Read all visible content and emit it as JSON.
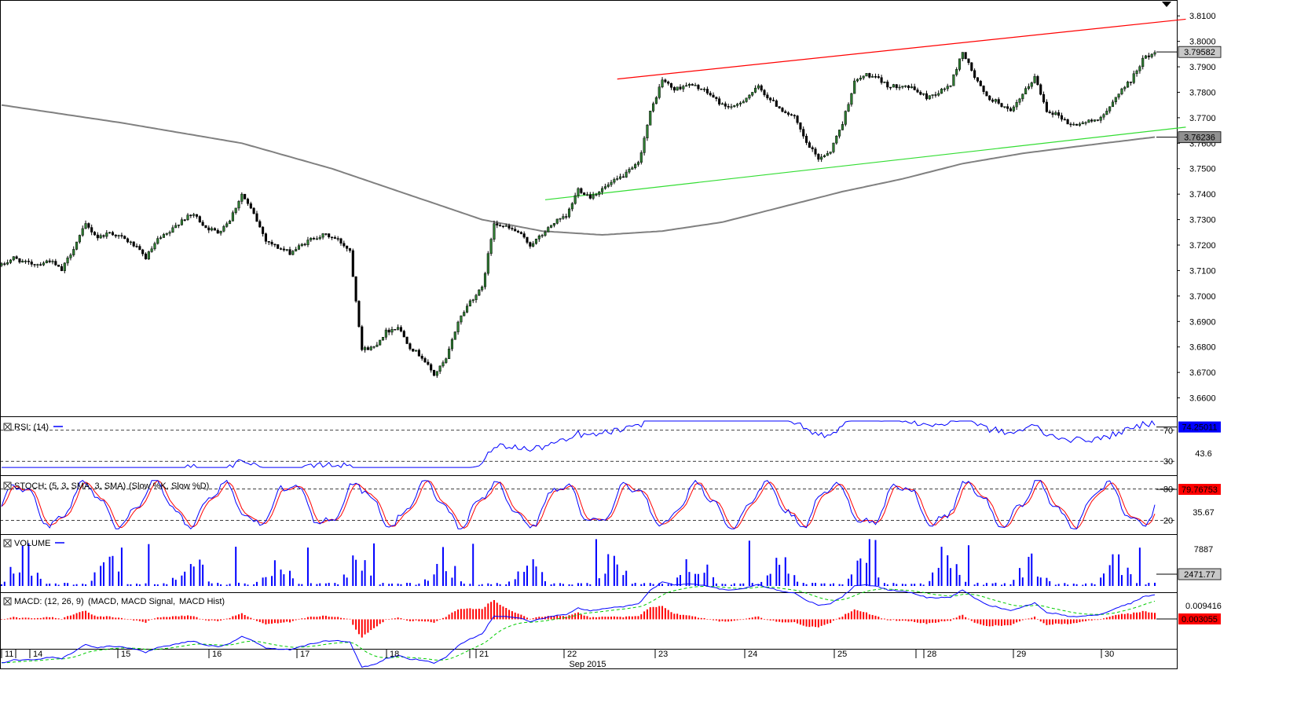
{
  "chart_data": {
    "type": "candlestick",
    "instrument_scale": {
      "price_ticks": [
        "3.8100",
        "3.8000",
        "3.7900",
        "3.7800",
        "3.7700",
        "3.7600",
        "3.7500",
        "3.7400",
        "3.7300",
        "3.7200",
        "3.7100",
        "3.7000",
        "3.6900",
        "3.6800",
        "3.6700",
        "3.6600"
      ],
      "ylim": [
        3.654,
        3.815
      ],
      "last_price_label": "3.79582",
      "ma_value_label": "3.76236"
    },
    "x_axis": {
      "labels": [
        "11",
        "14",
        "15",
        "16",
        "17",
        "18",
        "21",
        "22",
        "23",
        "24",
        "25",
        "28",
        "29",
        "30"
      ],
      "month_label": "Sep 2015"
    },
    "price_path": [
      [
        0,
        3.712
      ],
      [
        4,
        3.715
      ],
      [
        8,
        3.713
      ],
      [
        12,
        3.7125
      ],
      [
        16,
        3.714
      ],
      [
        20,
        3.71
      ],
      [
        24,
        3.719
      ],
      [
        28,
        3.728
      ],
      [
        32,
        3.723
      ],
      [
        36,
        3.725
      ],
      [
        40,
        3.723
      ],
      [
        44,
        3.72
      ],
      [
        48,
        3.715
      ],
      [
        52,
        3.722
      ],
      [
        56,
        3.725
      ],
      [
        60,
        3.73
      ],
      [
        64,
        3.732
      ],
      [
        68,
        3.727
      ],
      [
        72,
        3.725
      ],
      [
        76,
        3.73
      ],
      [
        80,
        3.74
      ],
      [
        84,
        3.732
      ],
      [
        88,
        3.722
      ],
      [
        92,
        3.719
      ],
      [
        96,
        3.717
      ],
      [
        100,
        3.72
      ],
      [
        104,
        3.723
      ],
      [
        108,
        3.724
      ],
      [
        112,
        3.722
      ],
      [
        116,
        3.718
      ],
      [
        120,
        3.679
      ],
      [
        124,
        3.68
      ],
      [
        128,
        3.686
      ],
      [
        132,
        3.688
      ],
      [
        136,
        3.68
      ],
      [
        140,
        3.676
      ],
      [
        144,
        3.669
      ],
      [
        148,
        3.675
      ],
      [
        152,
        3.69
      ],
      [
        156,
        3.698
      ],
      [
        160,
        3.703
      ],
      [
        164,
        3.729
      ],
      [
        168,
        3.727
      ],
      [
        172,
        3.725
      ],
      [
        176,
        3.72
      ],
      [
        180,
        3.724
      ],
      [
        184,
        3.729
      ],
      [
        188,
        3.731
      ],
      [
        192,
        3.742
      ],
      [
        196,
        3.739
      ],
      [
        200,
        3.742
      ],
      [
        204,
        3.745
      ],
      [
        208,
        3.748
      ],
      [
        212,
        3.752
      ],
      [
        216,
        3.772
      ],
      [
        220,
        3.785
      ],
      [
        224,
        3.781
      ],
      [
        228,
        3.783
      ],
      [
        232,
        3.782
      ],
      [
        236,
        3.779
      ],
      [
        240,
        3.775
      ],
      [
        244,
        3.774
      ],
      [
        248,
        3.778
      ],
      [
        252,
        3.782
      ],
      [
        256,
        3.777
      ],
      [
        260,
        3.773
      ],
      [
        264,
        3.77
      ],
      [
        268,
        3.76
      ],
      [
        272,
        3.754
      ],
      [
        276,
        3.757
      ],
      [
        280,
        3.768
      ],
      [
        284,
        3.784
      ],
      [
        288,
        3.787
      ],
      [
        292,
        3.785
      ],
      [
        296,
        3.782
      ],
      [
        300,
        3.783
      ],
      [
        304,
        3.781
      ],
      [
        308,
        3.778
      ],
      [
        312,
        3.78
      ],
      [
        316,
        3.783
      ],
      [
        320,
        3.796
      ],
      [
        324,
        3.786
      ],
      [
        328,
        3.778
      ],
      [
        332,
        3.776
      ],
      [
        336,
        3.772
      ],
      [
        340,
        3.779
      ],
      [
        344,
        3.786
      ],
      [
        348,
        3.773
      ],
      [
        352,
        3.771
      ],
      [
        356,
        3.767
      ],
      [
        360,
        3.768
      ],
      [
        364,
        3.769
      ],
      [
        368,
        3.772
      ],
      [
        372,
        3.78
      ],
      [
        376,
        3.7845
      ],
      [
        380,
        3.793
      ],
      [
        384,
        3.7958
      ]
    ],
    "ma_path": [
      [
        0,
        3.775
      ],
      [
        40,
        3.768
      ],
      [
        80,
        3.76
      ],
      [
        110,
        3.75
      ],
      [
        140,
        3.738
      ],
      [
        160,
        3.73
      ],
      [
        180,
        3.7255
      ],
      [
        200,
        3.724
      ],
      [
        220,
        3.7255
      ],
      [
        240,
        3.729
      ],
      [
        260,
        3.735
      ],
      [
        280,
        3.741
      ],
      [
        300,
        3.746
      ],
      [
        320,
        3.752
      ],
      [
        340,
        3.756
      ],
      [
        360,
        3.759
      ],
      [
        384,
        3.7624
      ]
    ],
    "resistance_line": {
      "start": [
        205,
        3.7852
      ],
      "end": [
        387,
        3.8087
      ]
    },
    "support_line": {
      "start": [
        181,
        3.7378
      ],
      "end": [
        387,
        3.7663
      ]
    },
    "indicators": [
      {
        "label": "RSI: (14)",
        "ticks": [
          "70",
          "30"
        ],
        "side_labels": [
          "43.6"
        ],
        "value_label": "74.25011",
        "ylim": [
          15,
          85
        ],
        "levels": [
          70,
          30
        ]
      },
      {
        "label": "STOCH: (5, 3, SMA, 3, SMA)",
        "series_labels": [
          "(Slow %K,",
          "Slow %D)"
        ],
        "ticks": [
          "80",
          "20"
        ],
        "side_labels": [
          "35.67"
        ],
        "value_label": "79.76753",
        "ylim": [
          0,
          100
        ],
        "levels": [
          80,
          20
        ]
      },
      {
        "label": "VOLUME",
        "side_labels": [
          "7887"
        ],
        "value_label": "2471.77",
        "ylim": [
          0,
          9000
        ]
      },
      {
        "label": "MACD: (12, 26, 9)",
        "series_labels": [
          "(MACD,",
          "MACD Signal,",
          "MACD Hist)"
        ],
        "side_labels": [
          "0.009416"
        ],
        "value_label": "0.003055",
        "ylim": [
          -0.014,
          0.012
        ]
      }
    ]
  },
  "colors": {
    "up": "#000000",
    "down": "#000000",
    "wick": "#000000",
    "up_fill": "#2e7d32",
    "down_fill": "#000000",
    "ma": "#808080",
    "resistance": "#ff0000",
    "support": "#33dd33",
    "rsi": "#0000ff",
    "stoch_k": "#0000ff",
    "stoch_d": "#ff0000",
    "volume": "#0000ff",
    "macd": "#0000ff",
    "macd_signal": "#00cc00",
    "macd_hist": "#ff0000",
    "value_box_blue": "#0000ff",
    "value_box_red": "#ff0000",
    "value_box_gray": "#c8c8c8"
  },
  "icons": {
    "pane_close": "close-box-icon",
    "top_marker": "triangle-down-icon"
  }
}
